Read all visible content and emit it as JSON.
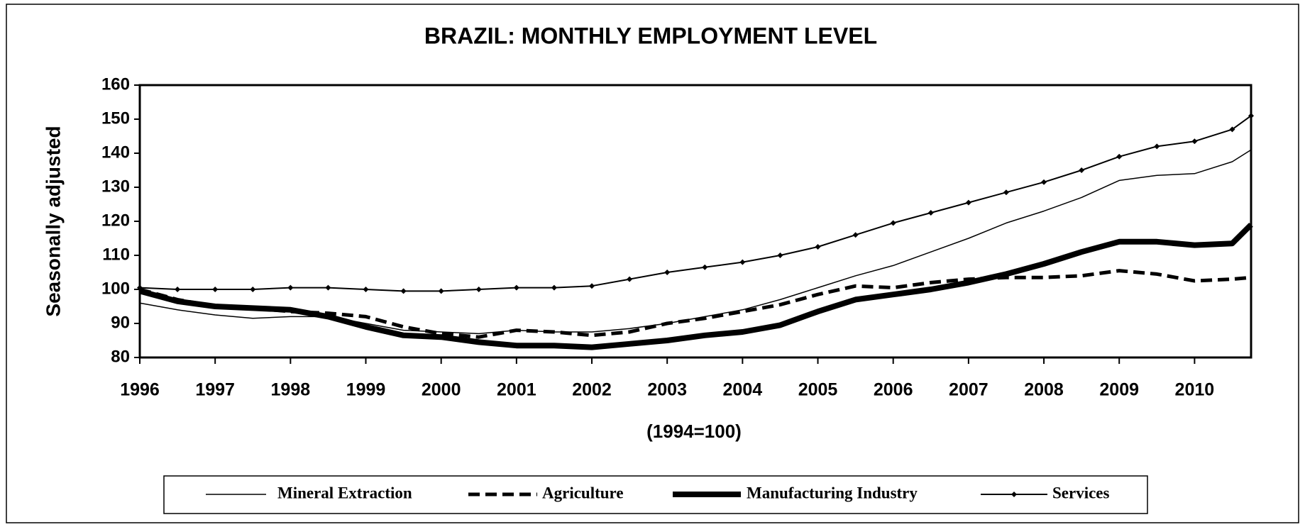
{
  "chart_data": {
    "type": "line",
    "title": "BRAZIL: MONTHLY EMPLOYMENT LEVEL",
    "y_label": "Seasonally adjusted",
    "x_label": "(1994=100)",
    "x": [
      1996,
      1996.5,
      1997,
      1997.5,
      1998,
      1998.5,
      1999,
      1999.5,
      2000,
      2000.5,
      2001,
      2001.5,
      2002,
      2002.5,
      2003,
      2003.5,
      2004,
      2004.5,
      2005,
      2005.5,
      2006,
      2006.5,
      2007,
      2007.5,
      2008,
      2008.5,
      2009,
      2009.5,
      2010,
      2010.5,
      2010.75
    ],
    "xlim": [
      1996,
      2010.75
    ],
    "xticks": [
      1996,
      1997,
      1998,
      1999,
      2000,
      2001,
      2002,
      2003,
      2004,
      2005,
      2006,
      2007,
      2008,
      2009,
      2010
    ],
    "ylim": [
      80,
      160
    ],
    "yticks": [
      80,
      90,
      100,
      110,
      120,
      130,
      140,
      150,
      160
    ],
    "series": [
      {
        "name": "Mineral Extraction",
        "color": "#000000",
        "linestyle": "solid",
        "linewidth": 1.5,
        "values": [
          96,
          94,
          92.5,
          91.5,
          92,
          92,
          90,
          88,
          87.5,
          87,
          88,
          87.5,
          87.5,
          88.5,
          90,
          92,
          94,
          97,
          100.5,
          104,
          107,
          111,
          115,
          119.5,
          123,
          127,
          132,
          133.5,
          134,
          137.5,
          141
        ]
      },
      {
        "name": "Agriculture",
        "color": "#000000",
        "linestyle": "dashed",
        "linewidth": 5,
        "values": [
          100,
          97,
          95,
          94.5,
          93.5,
          93,
          92,
          89,
          87,
          86,
          88,
          87.5,
          86.5,
          87.5,
          90,
          91.5,
          93.5,
          95.5,
          98.5,
          101,
          100.5,
          102,
          103,
          103.5,
          103.5,
          104,
          105.5,
          104.5,
          102.5,
          103,
          103.5
        ]
      },
      {
        "name": "Manufacturing Industry",
        "color": "#000000",
        "linestyle": "solid",
        "linewidth": 8,
        "values": [
          99.5,
          96.5,
          95,
          94.5,
          94,
          92,
          89,
          86.5,
          86,
          84.5,
          83.5,
          83.5,
          83,
          84,
          85,
          86.5,
          87.5,
          89.5,
          93.5,
          97,
          98.5,
          100,
          102,
          104.5,
          107.5,
          111,
          114,
          114,
          113,
          113.5,
          119
        ]
      },
      {
        "name": "Services",
        "color": "#000000",
        "linestyle": "solid",
        "linewidth": 2,
        "marker": "diamond",
        "values": [
          100.5,
          100,
          100,
          100,
          100.5,
          100.5,
          100,
          99.5,
          99.5,
          100,
          100.5,
          100.5,
          101,
          103,
          105,
          106.5,
          108,
          110,
          112.5,
          116,
          119.5,
          122.5,
          125.5,
          128.5,
          131.5,
          135,
          139,
          142,
          143.5,
          147,
          151
        ]
      }
    ]
  }
}
